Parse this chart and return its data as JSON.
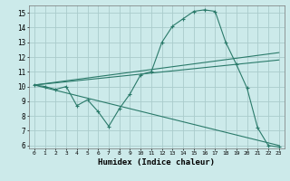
{
  "xlabel": "Humidex (Indice chaleur)",
  "ylabel": "",
  "background_color": "#cceaea",
  "grid_color": "#aacccc",
  "line_color": "#2a7a6a",
  "xlim": [
    -0.5,
    23.5
  ],
  "ylim": [
    5.8,
    15.5
  ],
  "xticks": [
    0,
    1,
    2,
    3,
    4,
    5,
    6,
    7,
    8,
    9,
    10,
    11,
    12,
    13,
    14,
    15,
    16,
    17,
    18,
    19,
    20,
    21,
    22,
    23
  ],
  "yticks": [
    6,
    7,
    8,
    9,
    10,
    11,
    12,
    13,
    14,
    15
  ],
  "line1": {
    "x": [
      0,
      1,
      2,
      3,
      4,
      5,
      6,
      7,
      8,
      9,
      10,
      11,
      12,
      13,
      14,
      15,
      16,
      17,
      18,
      19,
      20,
      21,
      22,
      23
    ],
    "y": [
      10.1,
      10.0,
      9.8,
      10.0,
      8.7,
      9.1,
      8.3,
      7.3,
      8.5,
      9.5,
      10.8,
      11.0,
      13.0,
      14.1,
      14.6,
      15.1,
      15.2,
      15.1,
      13.0,
      11.5,
      9.9,
      7.2,
      6.0,
      5.9
    ]
  },
  "line2": {
    "x": [
      0,
      23
    ],
    "y": [
      10.1,
      11.8
    ]
  },
  "line3": {
    "x": [
      0,
      23
    ],
    "y": [
      10.1,
      12.3
    ]
  },
  "line4": {
    "x": [
      0,
      23
    ],
    "y": [
      10.1,
      6.0
    ]
  }
}
